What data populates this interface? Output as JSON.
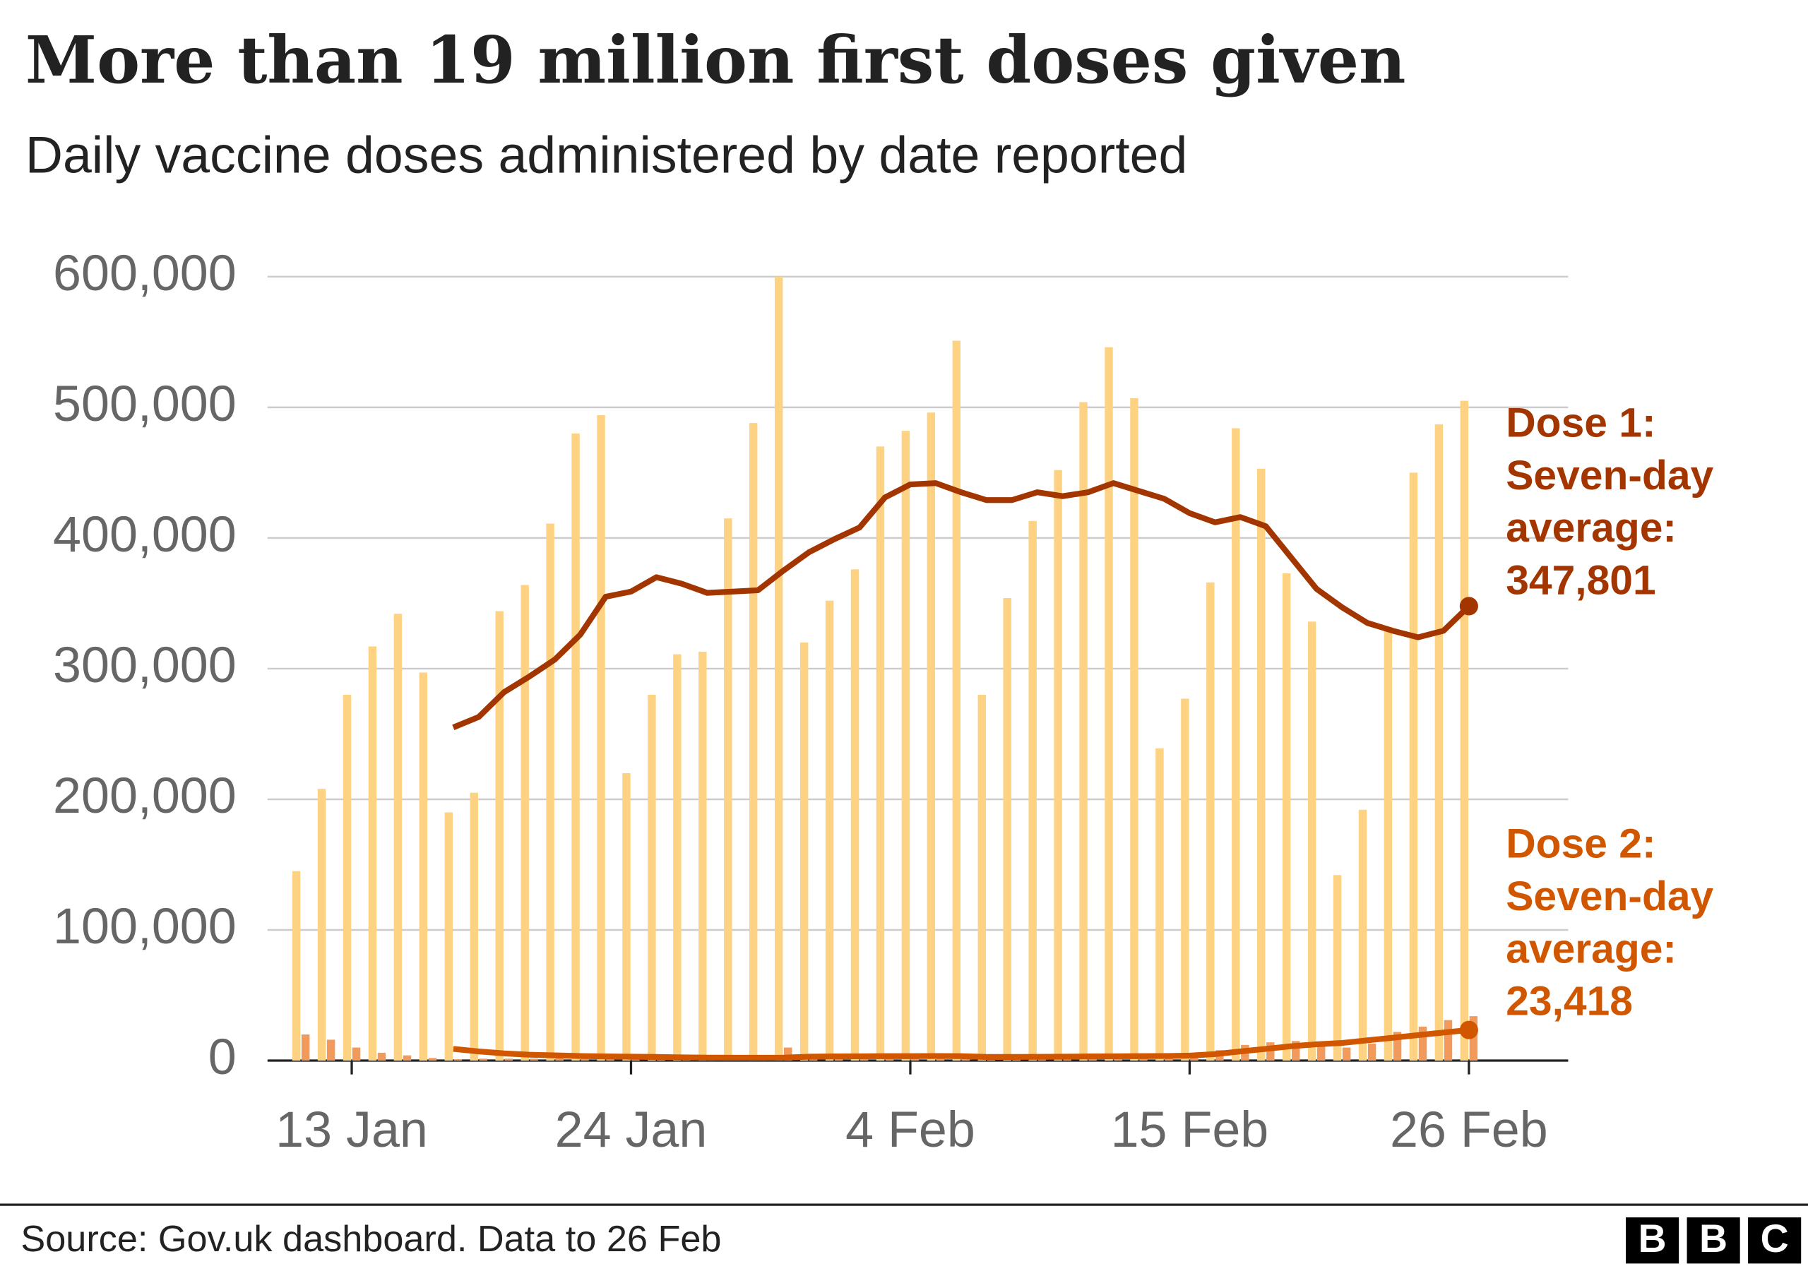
{
  "chart_data": {
    "type": "bar",
    "title": "More than 19 million first doses given",
    "subtitle": "Daily vaccine doses administered by date reported",
    "source": "Source: Gov.uk dashboard. Data to 26 Feb",
    "logo": [
      "B",
      "B",
      "C"
    ],
    "categories": [
      null,
      null,
      "13 Jan",
      null,
      null,
      null,
      null,
      null,
      null,
      null,
      null,
      null,
      null,
      "24 Jan",
      null,
      null,
      null,
      null,
      null,
      null,
      null,
      null,
      null,
      null,
      "4 Feb",
      null,
      null,
      null,
      null,
      null,
      null,
      null,
      null,
      null,
      null,
      "15 Feb",
      null,
      null,
      null,
      null,
      null,
      null,
      null,
      null,
      null,
      null,
      "26 Feb"
    ],
    "ylim": [
      0,
      600000
    ],
    "yticks": [
      {
        "value": 0,
        "label": "0"
      },
      {
        "value": 100000,
        "label": "100,000"
      },
      {
        "value": 200000,
        "label": "200,000"
      },
      {
        "value": 300000,
        "label": "300,000"
      },
      {
        "value": 400000,
        "label": "400,000"
      },
      {
        "value": 500000,
        "label": "500,000"
      },
      {
        "value": 600000,
        "label": "600,000"
      }
    ],
    "grid": true,
    "series": [
      {
        "type": "bar",
        "color": "#fed283",
        "values": [
          145000,
          208000,
          280000,
          317000,
          342000,
          297000,
          190000,
          205000,
          344000,
          364000,
          411000,
          480000,
          494000,
          220000,
          280000,
          311000,
          313000,
          415000,
          488000,
          600000,
          320000,
          352000,
          376000,
          470000,
          482000,
          496000,
          551000,
          280000,
          354000,
          413000,
          452000,
          504000,
          546000,
          507000,
          239000,
          277000,
          366000,
          484000,
          453000,
          373000,
          336000,
          142000,
          192000,
          332000,
          450000,
          487000,
          505000
        ]
      },
      {
        "type": "bar",
        "color": "#f29a5c",
        "values": [
          20000,
          16000,
          10000,
          6000,
          4000,
          2000,
          1000,
          1500,
          1500,
          1500,
          2000,
          2000,
          2000,
          1500,
          2000,
          2000,
          2000,
          2000,
          3000,
          10000,
          3000,
          3000,
          3000,
          3000,
          3000,
          5000,
          3000,
          2000,
          2000,
          2000,
          2000,
          2000,
          3000,
          3000,
          3000,
          4000,
          8000,
          12000,
          14000,
          15000,
          14000,
          10000,
          13000,
          22000,
          26000,
          31000,
          34000
        ]
      },
      {
        "type": "line",
        "color": "#a33600",
        "annotation": [
          "Dose 1:",
          "Seven-day",
          "average:"
        ],
        "values": [
          null,
          null,
          null,
          null,
          null,
          null,
          255000,
          263000,
          282000,
          294000,
          307000,
          326000,
          355000,
          359000,
          370000,
          365000,
          358000,
          359000,
          360000,
          375000,
          389000,
          399000,
          408000,
          431000,
          441000,
          442000,
          435000,
          429000,
          429000,
          435000,
          432000,
          435000,
          442000,
          436000,
          430000,
          419000,
          412000,
          416000,
          409000,
          385000,
          361000,
          347000,
          335000,
          329000,
          324000,
          329000,
          347801
        ],
        "value_labels": [
          null,
          null,
          null,
          null,
          null,
          null,
          null,
          null,
          null,
          null,
          null,
          null,
          null,
          null,
          null,
          null,
          null,
          null,
          null,
          null,
          null,
          null,
          null,
          null,
          null,
          null,
          null,
          null,
          null,
          null,
          null,
          null,
          null,
          null,
          null,
          null,
          null,
          null,
          null,
          null,
          null,
          null,
          null,
          null,
          null,
          null,
          "347,801"
        ]
      },
      {
        "type": "line",
        "color": "#d15600",
        "annotation": [
          "Dose 2:",
          "Seven-day",
          "average:"
        ],
        "values": [
          null,
          null,
          null,
          null,
          null,
          null,
          9000,
          7000,
          5500,
          4500,
          4000,
          3500,
          3200,
          3000,
          2800,
          2500,
          2300,
          2200,
          2200,
          2300,
          3000,
          3200,
          3300,
          3400,
          3400,
          3500,
          3400,
          2800,
          2800,
          2900,
          3000,
          3200,
          3300,
          3400,
          3500,
          3800,
          5000,
          7000,
          9000,
          11000,
          12500,
          13500,
          15500,
          17500,
          19500,
          21500,
          23418
        ],
        "value_labels": [
          null,
          null,
          null,
          null,
          null,
          null,
          null,
          null,
          null,
          null,
          null,
          null,
          null,
          null,
          null,
          null,
          null,
          null,
          null,
          null,
          null,
          null,
          null,
          null,
          null,
          null,
          null,
          null,
          null,
          null,
          null,
          null,
          null,
          null,
          null,
          null,
          null,
          null,
          null,
          null,
          null,
          null,
          null,
          null,
          null,
          null,
          "23,418"
        ]
      }
    ]
  }
}
